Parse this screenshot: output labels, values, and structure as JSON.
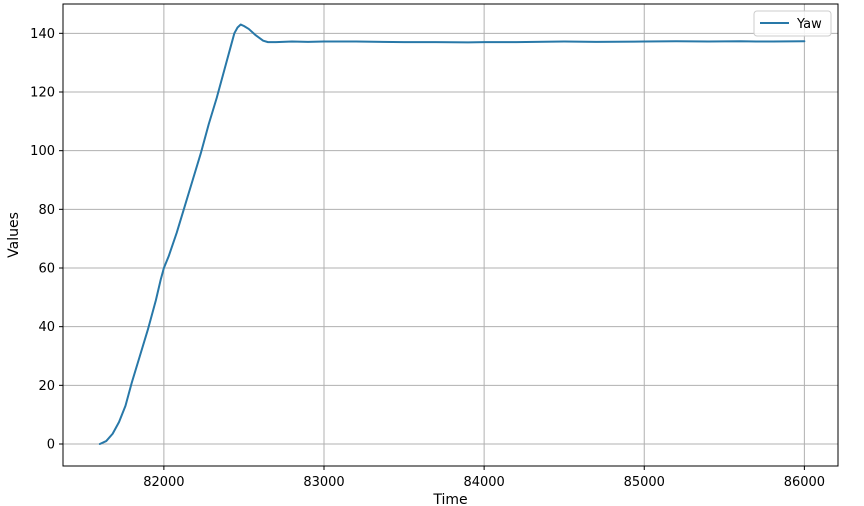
{
  "chart_data": {
    "type": "line",
    "xlabel": "Time",
    "ylabel": "Values",
    "xlim": [
      81370,
      86210
    ],
    "ylim": [
      -7.5,
      150
    ],
    "xticks": [
      82000,
      83000,
      84000,
      85000,
      86000
    ],
    "yticks": [
      0,
      20,
      40,
      60,
      80,
      100,
      120,
      140
    ],
    "grid": true,
    "legend_position": "top-right",
    "series": [
      {
        "name": "Yaw",
        "color": "#2878a8",
        "x": [
          81600,
          81640,
          81680,
          81720,
          81760,
          81800,
          81850,
          81900,
          81950,
          81980,
          82000,
          82030,
          82080,
          82130,
          82180,
          82230,
          82280,
          82330,
          82380,
          82420,
          82440,
          82460,
          82480,
          82500,
          82530,
          82570,
          82620,
          82650,
          82700,
          82800,
          82900,
          83000,
          83200,
          83500,
          83700,
          83900,
          84000,
          84200,
          84500,
          84700,
          85000,
          85200,
          85400,
          85600,
          85700,
          85800,
          86000
        ],
        "y": [
          0,
          1,
          3.5,
          7.5,
          13,
          21,
          30,
          39,
          49,
          56,
          60,
          64,
          72,
          81,
          90,
          99,
          109,
          118,
          128,
          136,
          140,
          142,
          143,
          142.5,
          141.5,
          139.5,
          137.5,
          137,
          137,
          137.2,
          137.1,
          137.2,
          137.2,
          137,
          137,
          136.9,
          137,
          137,
          137.2,
          137.1,
          137.2,
          137.3,
          137.2,
          137.3,
          137.2,
          137.2,
          137.3
        ]
      }
    ]
  }
}
